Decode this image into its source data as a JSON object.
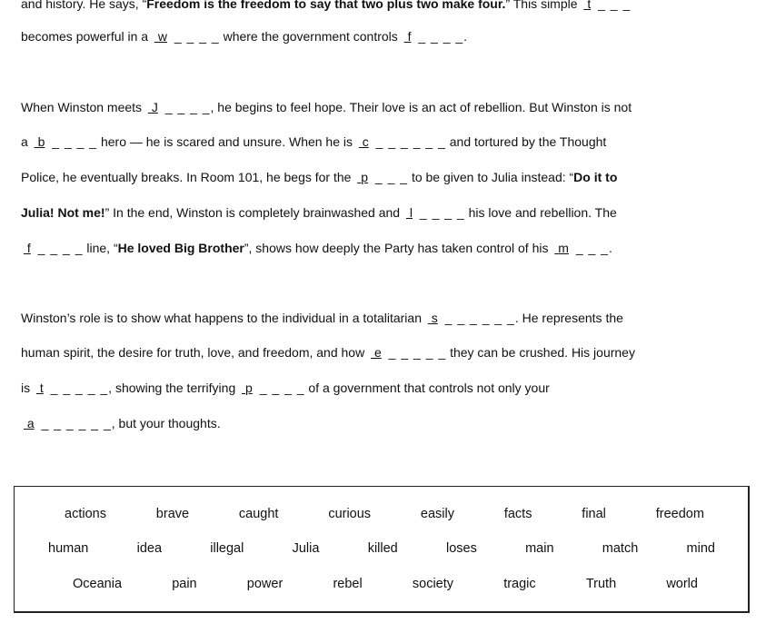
{
  "lines": [
    [
      {
        "t": "and history. He says, “"
      },
      {
        "t": "Freedom is the freedom to say that two plus two make four.",
        "b": true
      },
      {
        "t": "” This simple "
      },
      {
        "hint": "t",
        "dashes": 3
      }
    ],
    [
      {
        "t": "becomes powerful in a "
      },
      {
        "hint": "w",
        "dashes": 4
      },
      {
        "t": " where the government controls "
      },
      {
        "hint": "f",
        "dashes": 4
      },
      {
        "t": "."
      }
    ],
    [
      {
        "t": "When Winston meets "
      },
      {
        "hint": "J",
        "dashes": 4
      },
      {
        "t": ", he begins to feel hope. Their love is an act of rebellion. But Winston is not"
      }
    ],
    [
      {
        "t": "a "
      },
      {
        "hint": "b",
        "dashes": 4
      },
      {
        "t": " hero — he is scared and unsure. When he is "
      },
      {
        "hint": "c",
        "dashes": 6
      },
      {
        "t": " and tortured by the Thought"
      }
    ],
    [
      {
        "t": "Police, he eventually breaks. In Room 101, he begs for the "
      },
      {
        "hint": "p",
        "dashes": 3
      },
      {
        "t": " to be given to Julia instead: “"
      },
      {
        "t": "Do it to",
        "b": true
      }
    ],
    [
      {
        "t": "Julia! Not me!",
        "b": true
      },
      {
        "t": "” In the end, Winston is completely brainwashed and "
      },
      {
        "hint": "l",
        "dashes": 4
      },
      {
        "t": " his love and rebellion. The"
      }
    ],
    [
      {
        "hint": "f",
        "dashes": 4
      },
      {
        "t": " line, “"
      },
      {
        "t": "He loved Big Brother",
        "b": true
      },
      {
        "t": "”, shows how deeply the Party has taken control of his "
      },
      {
        "hint": "m",
        "dashes": 3
      },
      {
        "t": "."
      }
    ],
    [
      {
        "t": "Winston’s role is to show what happens to the individual in a totalitarian "
      },
      {
        "hint": "s",
        "dashes": 6
      },
      {
        "t": ". He represents the"
      }
    ],
    [
      {
        "t": "human spirit, the desire for truth, love, and freedom, and how "
      },
      {
        "hint": "e",
        "dashes": 5
      },
      {
        "t": " they can be crushed. His journey"
      }
    ],
    [
      {
        "t": "is "
      },
      {
        "hint": "t",
        "dashes": 5
      },
      {
        "t": ", showing the terrifying "
      },
      {
        "hint": "p",
        "dashes": 4
      },
      {
        "t": " of a government that controls not only your"
      }
    ],
    [
      {
        "hint": "a",
        "dashes": 6
      },
      {
        "t": ", but your thoughts."
      }
    ]
  ],
  "word_bank": [
    [
      "actions",
      "brave",
      "caught",
      "curious",
      "easily",
      "facts",
      "final",
      "freedom"
    ],
    [
      "human",
      "idea",
      "illegal",
      "Julia",
      "killed",
      "loses",
      "main",
      "match",
      "mind"
    ],
    [
      "Oceania",
      "pain",
      "power",
      "rebel",
      "society",
      "tragic",
      "Truth",
      "world"
    ]
  ]
}
